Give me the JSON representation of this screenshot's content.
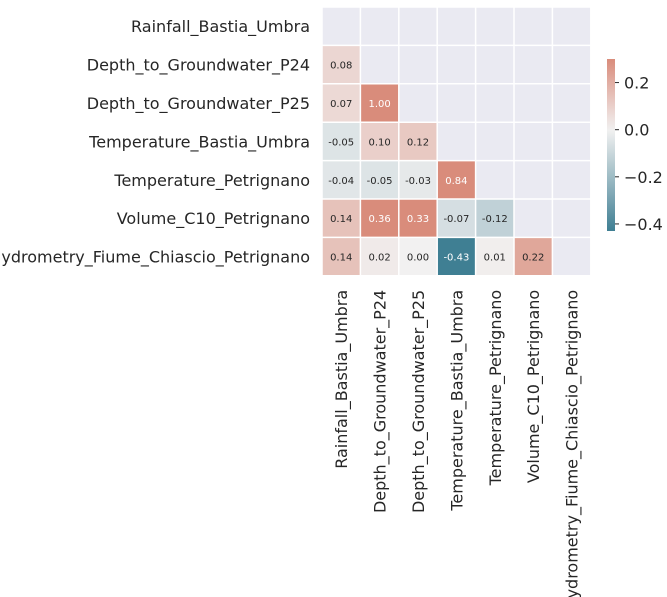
{
  "chart_data": {
    "type": "heatmap",
    "variables": [
      "Rainfall_Bastia_Umbra",
      "Depth_to_Groundwater_P24",
      "Depth_to_Groundwater_P25",
      "Temperature_Bastia_Umbra",
      "Temperature_Petrignano",
      "Volume_C10_Petrignano",
      "Hydrometry_Fiume_Chiascio_Petrignano"
    ],
    "mask": "upper-triangle-including-diagonal",
    "cells": [
      {
        "row": 1,
        "col": 0,
        "value": 0.08,
        "label": "0.08"
      },
      {
        "row": 2,
        "col": 0,
        "value": 0.07,
        "label": "0.07"
      },
      {
        "row": 2,
        "col": 1,
        "value": 1.0,
        "label": "1.00"
      },
      {
        "row": 3,
        "col": 0,
        "value": -0.05,
        "label": "-0.05"
      },
      {
        "row": 3,
        "col": 1,
        "value": 0.1,
        "label": "0.10"
      },
      {
        "row": 3,
        "col": 2,
        "value": 0.12,
        "label": "0.12"
      },
      {
        "row": 4,
        "col": 0,
        "value": -0.04,
        "label": "-0.04"
      },
      {
        "row": 4,
        "col": 1,
        "value": -0.05,
        "label": "-0.05"
      },
      {
        "row": 4,
        "col": 2,
        "value": -0.03,
        "label": "-0.03"
      },
      {
        "row": 4,
        "col": 3,
        "value": 0.84,
        "label": "0.84"
      },
      {
        "row": 5,
        "col": 0,
        "value": 0.14,
        "label": "0.14"
      },
      {
        "row": 5,
        "col": 1,
        "value": 0.36,
        "label": "0.36"
      },
      {
        "row": 5,
        "col": 2,
        "value": 0.33,
        "label": "0.33"
      },
      {
        "row": 5,
        "col": 3,
        "value": -0.07,
        "label": "-0.07"
      },
      {
        "row": 5,
        "col": 4,
        "value": -0.12,
        "label": "-0.12"
      },
      {
        "row": 6,
        "col": 0,
        "value": 0.14,
        "label": "0.14"
      },
      {
        "row": 6,
        "col": 1,
        "value": 0.02,
        "label": "0.02"
      },
      {
        "row": 6,
        "col": 2,
        "value": 0.0,
        "label": "0.00"
      },
      {
        "row": 6,
        "col": 3,
        "value": -0.43,
        "label": "-0.43"
      },
      {
        "row": 6,
        "col": 4,
        "value": 0.01,
        "label": "0.01"
      },
      {
        "row": 6,
        "col": 5,
        "value": 0.22,
        "label": "0.22"
      }
    ],
    "color_range": [
      -0.43,
      0.3
    ],
    "colors": {
      "negative": "#3f7f93",
      "neutral": "#f2f1f1",
      "positive": "#d98c7b",
      "masked_background": "#eaeaf2",
      "grid_line": "#ffffff"
    },
    "colorbar": {
      "ticks": [
        0.2,
        0.0,
        -0.2,
        -0.4
      ],
      "tick_labels": [
        "0.2",
        "0.0",
        "−0.2",
        "−0.4"
      ]
    }
  }
}
